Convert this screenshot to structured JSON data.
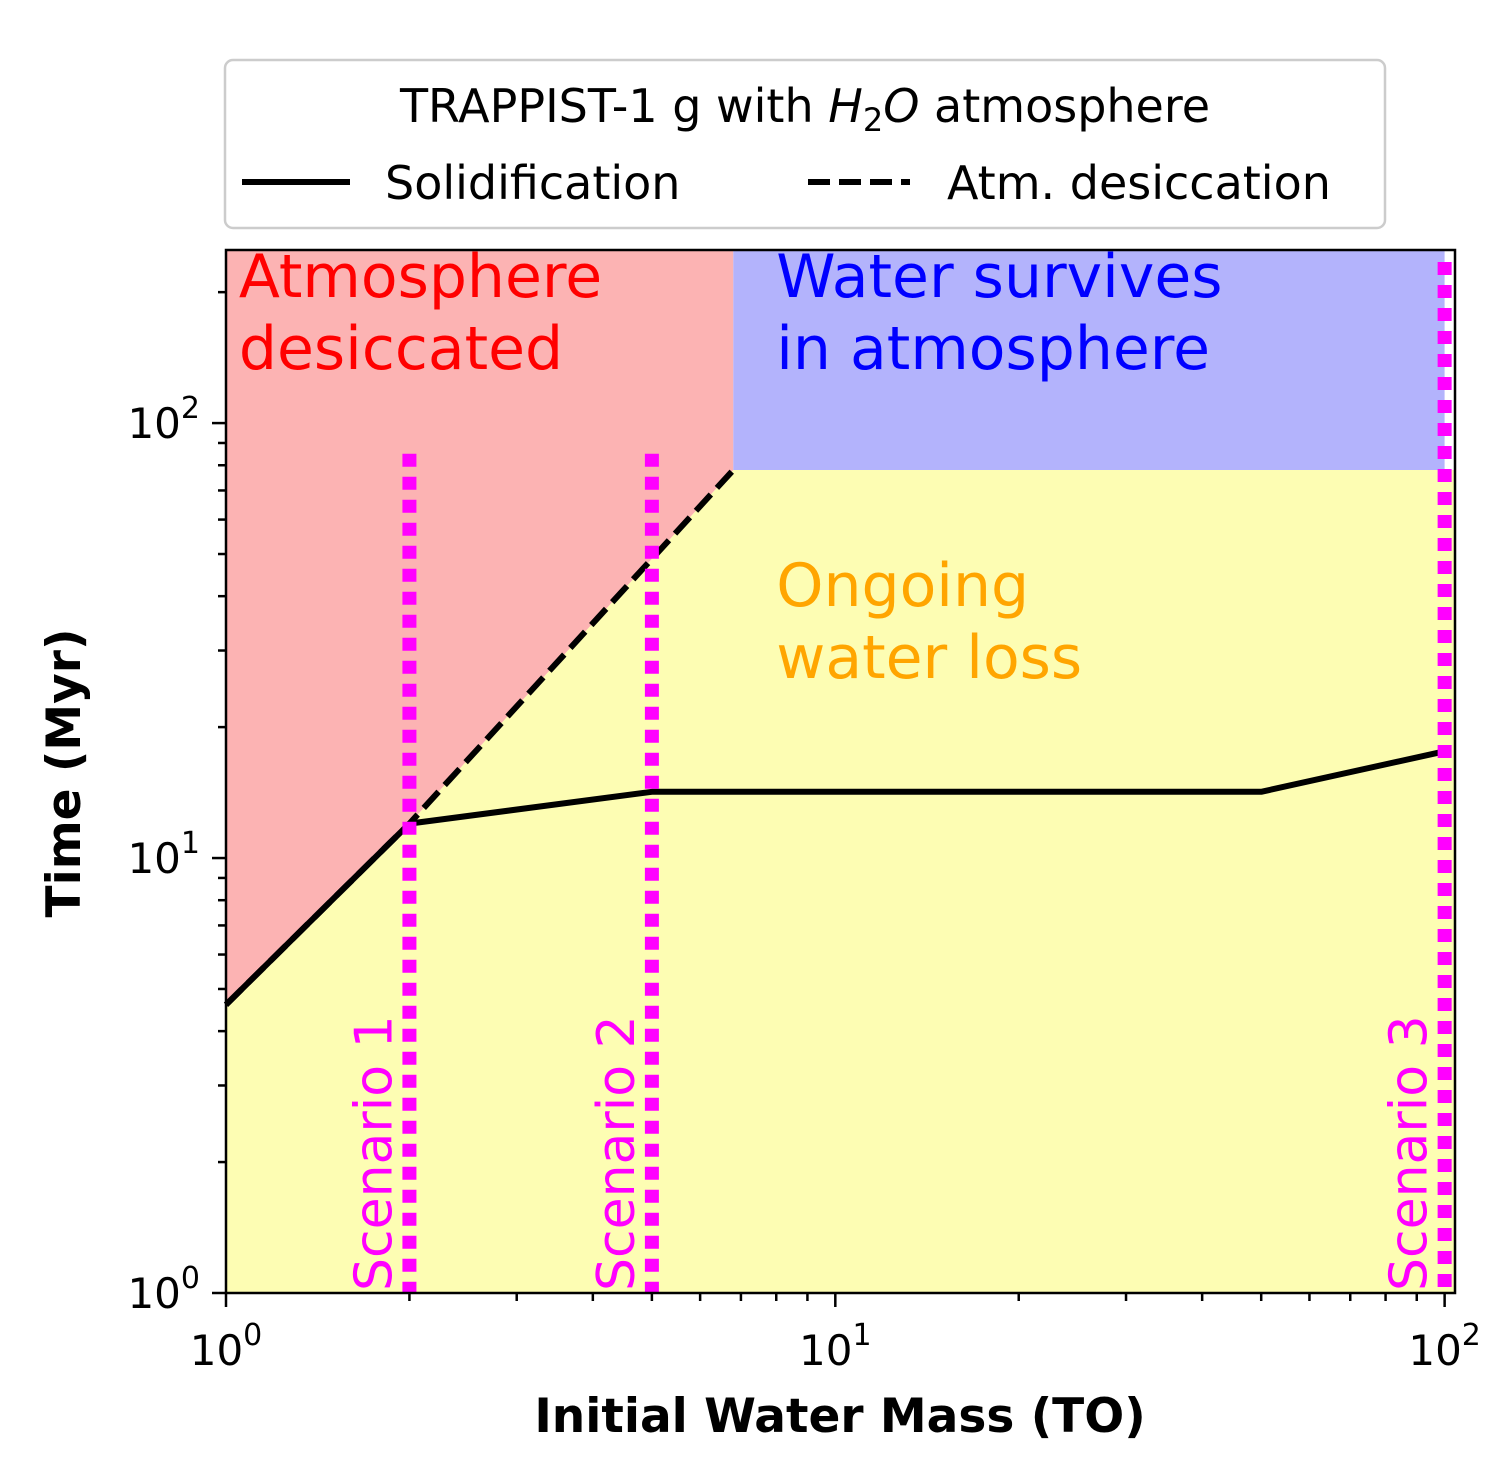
{
  "chart_data": {
    "type": "line",
    "legend": {
      "title_pre": "TRAPPIST-1 g with ",
      "title_math_H": "H",
      "title_math_sub": "2",
      "title_math_O": "O",
      "title_post": " atmosphere",
      "placement": "top",
      "entries": [
        {
          "label": "Solidification",
          "style": "solid"
        },
        {
          "label": "Atm. desiccation",
          "style": "dashed"
        }
      ]
    },
    "xlabel": "Initial Water Mass (TO)",
    "ylabel": "Time (Myr)",
    "xscale": "log",
    "yscale": "log",
    "xlim": [
      1,
      104
    ],
    "ylim": [
      1,
      250
    ],
    "grid": false,
    "x_ticks": [
      {
        "base": "10",
        "exp": "0",
        "value": 1
      },
      {
        "base": "10",
        "exp": "1",
        "value": 10
      },
      {
        "base": "10",
        "exp": "2",
        "value": 100
      }
    ],
    "y_ticks": [
      {
        "base": "10",
        "exp": "0",
        "value": 1
      },
      {
        "base": "10",
        "exp": "1",
        "value": 10
      },
      {
        "base": "10",
        "exp": "2",
        "value": 100
      }
    ],
    "series": [
      {
        "name": "Solidification",
        "style": "solid",
        "color": "#000000",
        "points": [
          [
            1,
            4.6
          ],
          [
            2,
            12
          ],
          [
            5,
            14.2
          ],
          [
            50,
            14.2
          ],
          [
            100,
            17.6
          ]
        ]
      },
      {
        "name": "Atm. desiccation",
        "style": "dashed",
        "color": "#000000",
        "points": [
          [
            1,
            4.6
          ],
          [
            2,
            12
          ],
          [
            6.8,
            78
          ]
        ]
      }
    ],
    "regions": [
      {
        "label_lines": [
          "Atmosphere",
          "desiccated"
        ],
        "color": "#ff0000",
        "fill": "#fcb3b3",
        "polygon": [
          [
            1,
            4.6
          ],
          [
            2,
            12
          ],
          [
            6.8,
            78
          ],
          [
            6.8,
            250
          ],
          [
            1,
            250
          ]
        ],
        "label_at": [
          1.05,
          195
        ]
      },
      {
        "label_lines": [
          "Water survives",
          "in atmosphere"
        ],
        "color": "#0000ff",
        "fill": "#b3b3fc",
        "polygon": [
          [
            6.8,
            78
          ],
          [
            100,
            78
          ],
          [
            100,
            250
          ],
          [
            6.8,
            250
          ]
        ],
        "label_at": [
          8,
          195
        ]
      },
      {
        "label_lines": [
          "Ongoing",
          "water loss"
        ],
        "color": "#ffa500",
        "fill": "#fdfdb3",
        "polygon": [
          [
            1,
            1
          ],
          [
            104,
            1
          ],
          [
            104,
            78
          ],
          [
            6.8,
            78
          ],
          [
            2,
            12
          ],
          [
            1,
            4.6
          ]
        ],
        "label_at": [
          8,
          38
        ]
      }
    ],
    "scenarios": [
      {
        "label": "Scenario 1",
        "x": 2,
        "y_top": 85
      },
      {
        "label": "Scenario 2",
        "x": 5,
        "y_top": 85
      },
      {
        "label": "Scenario 3",
        "x": 100,
        "y_top": 250
      }
    ],
    "scenario_color": "#ff00ff"
  }
}
